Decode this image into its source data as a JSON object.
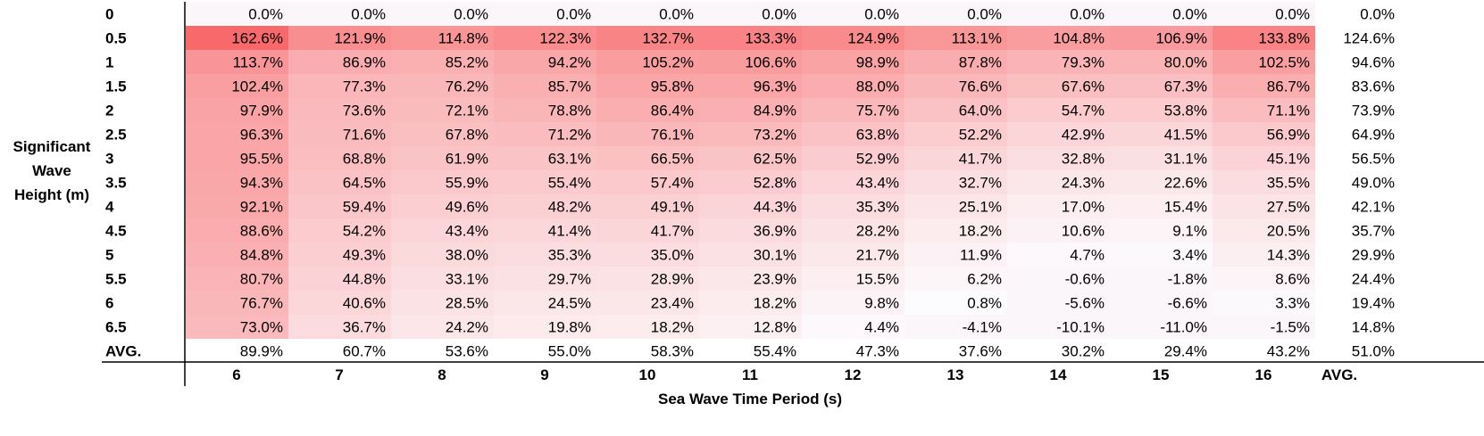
{
  "chart_data": {
    "type": "heatmap",
    "ylabel": [
      "Significant",
      "Wave",
      "Height (m)"
    ],
    "xlabel": "Sea Wave Time Period (s)",
    "row_labels": [
      "0",
      "0.5",
      "1",
      "1.5",
      "2",
      "2.5",
      "3",
      "3.5",
      "4",
      "4.5",
      "5",
      "5.5",
      "6",
      "6.5"
    ],
    "col_labels": [
      "6",
      "7",
      "8",
      "9",
      "10",
      "11",
      "12",
      "13",
      "14",
      "15",
      "16"
    ],
    "avg_label": "AVG.",
    "values": [
      [
        0.0,
        0.0,
        0.0,
        0.0,
        0.0,
        0.0,
        0.0,
        0.0,
        0.0,
        0.0,
        0.0
      ],
      [
        162.6,
        121.9,
        114.8,
        122.3,
        132.7,
        133.3,
        124.9,
        113.1,
        104.8,
        106.9,
        133.8
      ],
      [
        113.7,
        86.9,
        85.2,
        94.2,
        105.2,
        106.6,
        98.9,
        87.8,
        79.3,
        80.0,
        102.5
      ],
      [
        102.4,
        77.3,
        76.2,
        85.7,
        95.8,
        96.3,
        88.0,
        76.6,
        67.6,
        67.3,
        86.7
      ],
      [
        97.9,
        73.6,
        72.1,
        78.8,
        86.4,
        84.9,
        75.7,
        64.0,
        54.7,
        53.8,
        71.1
      ],
      [
        96.3,
        71.6,
        67.8,
        71.2,
        76.1,
        73.2,
        63.8,
        52.2,
        42.9,
        41.5,
        56.9
      ],
      [
        95.5,
        68.8,
        61.9,
        63.1,
        66.5,
        62.5,
        52.9,
        41.7,
        32.8,
        31.1,
        45.1
      ],
      [
        94.3,
        64.5,
        55.9,
        55.4,
        57.4,
        52.8,
        43.4,
        32.7,
        24.3,
        22.6,
        35.5
      ],
      [
        92.1,
        59.4,
        49.6,
        48.2,
        49.1,
        44.3,
        35.3,
        25.1,
        17.0,
        15.4,
        27.5
      ],
      [
        88.6,
        54.2,
        43.4,
        41.4,
        41.7,
        36.9,
        28.2,
        18.2,
        10.6,
        9.1,
        20.5
      ],
      [
        84.8,
        49.3,
        38.0,
        35.3,
        35.0,
        30.1,
        21.7,
        11.9,
        4.7,
        3.4,
        14.3
      ],
      [
        80.7,
        44.8,
        33.1,
        29.7,
        28.9,
        23.9,
        15.5,
        6.2,
        -0.6,
        -1.8,
        8.6
      ],
      [
        76.7,
        40.6,
        28.5,
        24.5,
        23.4,
        18.2,
        9.8,
        0.8,
        -5.6,
        -6.6,
        3.3
      ],
      [
        73.0,
        36.7,
        24.2,
        19.8,
        18.2,
        12.8,
        4.4,
        -4.1,
        -10.1,
        -11.0,
        -1.5
      ]
    ],
    "row_avg": [
      0.0,
      124.6,
      94.6,
      83.6,
      73.9,
      64.9,
      56.5,
      49.0,
      42.1,
      35.7,
      29.9,
      24.4,
      19.4,
      14.8
    ],
    "col_avg": [
      89.9,
      60.7,
      53.6,
      55.0,
      58.3,
      55.4,
      47.3,
      37.6,
      30.2,
      29.4,
      43.2
    ],
    "overall_avg": 51.0,
    "value_suffix": "%",
    "colors": {
      "high": "#f8696b",
      "low": "#fcfcff",
      "negative": "#faf6f9"
    }
  }
}
